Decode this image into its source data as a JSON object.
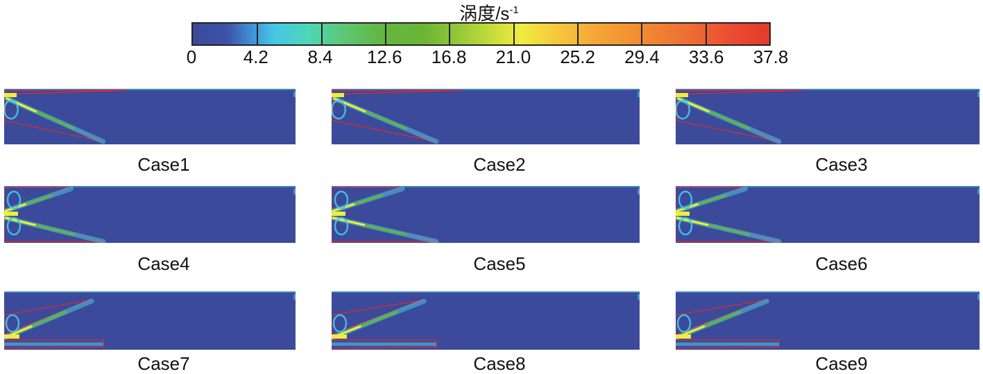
{
  "colorbar": {
    "title": "涡度/s",
    "title_sup": "-1",
    "ticks": [
      "0",
      "4.2",
      "8.4",
      "12.6",
      "16.8",
      "21.0",
      "25.2",
      "29.4",
      "33.6",
      "37.8"
    ],
    "range": [
      0,
      37.8
    ],
    "colors": [
      "#3b4a9a",
      "#45c6e6",
      "#63b640",
      "#f0ec40",
      "#f5a636",
      "#e33a2d"
    ]
  },
  "panels": [
    {
      "label": "Case1",
      "variant": "top"
    },
    {
      "label": "Case2",
      "variant": "top"
    },
    {
      "label": "Case3",
      "variant": "top"
    },
    {
      "label": "Case4",
      "variant": "double"
    },
    {
      "label": "Case5",
      "variant": "double"
    },
    {
      "label": "Case6",
      "variant": "double"
    },
    {
      "label": "Case7",
      "variant": "bottom"
    },
    {
      "label": "Case8",
      "variant": "bottom"
    },
    {
      "label": "Case9",
      "variant": "bottom"
    }
  ],
  "colors": {
    "field": "#3b4a9a",
    "outline": "#e8262b",
    "jet_core": "#f0ec40",
    "jet_mid": "#63b640",
    "jet_outer": "#45c6e6"
  }
}
